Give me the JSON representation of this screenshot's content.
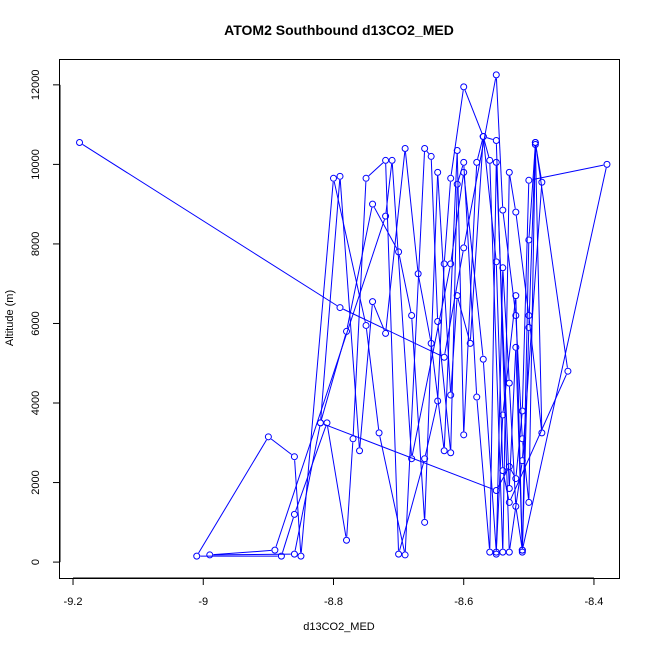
{
  "chart_data": {
    "type": "line",
    "title": "ATOM2 Southbound d13CO2_MED",
    "xlabel": "d13CO2_MED",
    "ylabel": "Altitude (m)",
    "xlim": [
      -9.22,
      -8.36
    ],
    "ylim": [
      -400,
      12650
    ],
    "xticks": [
      -9.2,
      -9.0,
      -8.8,
      -8.6,
      -8.4
    ],
    "yticks": [
      0,
      2000,
      4000,
      6000,
      8000,
      10000,
      12000
    ],
    "markers": "open-circle",
    "series_color": "#0000ff",
    "grid": false,
    "series": [
      {
        "x": [
          -9.19,
          -8.79,
          -8.63,
          -8.6,
          -8.55,
          -8.54,
          -8.52,
          -8.51,
          -8.5,
          -8.49,
          -8.48,
          -8.51,
          -8.53,
          -8.55,
          -8.57,
          -8.6,
          -8.62,
          -8.63,
          -8.64,
          -8.66,
          -8.7,
          -8.72,
          -8.75,
          -8.77,
          -8.78,
          -8.81,
          -8.86,
          -8.88,
          -9.01,
          -8.9,
          -8.86,
          -8.85,
          -8.8,
          -8.75,
          -8.73,
          -8.69,
          -8.66,
          -8.65,
          -8.64,
          -8.62,
          -8.61,
          -8.6,
          -8.58,
          -8.56,
          -8.55,
          -8.53,
          -8.52,
          -8.51,
          -8.5,
          -8.49,
          -8.48,
          -8.5,
          -8.52,
          -8.53,
          -8.54,
          -8.56,
          -8.57,
          -8.58,
          -8.6,
          -8.61,
          -8.63,
          -8.65,
          -8.67,
          -8.69,
          -8.72,
          -8.74,
          -8.76,
          -8.79,
          -8.82,
          -8.86,
          -8.99,
          -8.89,
          -8.72,
          -8.71,
          -8.68,
          -8.62,
          -8.6,
          -8.57,
          -8.55,
          -8.54,
          -8.52,
          -8.51,
          -8.5,
          -8.49,
          -8.44,
          -8.53,
          -8.54,
          -8.55,
          -8.57,
          -8.59,
          -8.61,
          -8.62,
          -8.64,
          -8.66,
          -8.68,
          -8.7,
          -8.74,
          -8.78,
          -8.82,
          -8.55,
          -8.53,
          -8.52,
          -8.51,
          -8.5,
          -8.38,
          -8.51,
          -8.52,
          -8.53,
          -8.54,
          -8.55
        ],
        "y": [
          10550,
          6400,
          5150,
          7900,
          12250,
          8850,
          6200,
          3100,
          1500,
          10550,
          9550,
          2550,
          250,
          10600,
          10700,
          11950,
          9650,
          7500,
          4050,
          2600,
          200,
          10100,
          9650,
          3100,
          550,
          3500,
          1200,
          150,
          150,
          3150,
          2650,
          150,
          9650,
          5950,
          3250,
          180,
          10400,
          10200,
          6050,
          2750,
          9500,
          10050,
          4150,
          250,
          10050,
          1850,
          5400,
          300,
          8100,
          10500,
          3250,
          6200,
          8800,
          9800,
          250,
          10100,
          10700,
          10050,
          3200,
          10350,
          2800,
          5500,
          7250,
          10400,
          5750,
          6550,
          2800,
          9700,
          3500,
          200,
          180,
          300,
          8700,
          10100,
          2600,
          7500,
          9800,
          5100,
          250,
          3700,
          6700,
          250,
          5900,
          10550,
          4800,
          1500,
          2300,
          7550,
          10700,
          5500,
          6700,
          4200,
          9800,
          1000,
          6200,
          7800,
          9000,
          5800,
          3500,
          1800,
          2400,
          2100,
          3800,
          9600,
          10000,
          300,
          1400,
          4500,
          7400,
          200
        ]
      }
    ]
  }
}
